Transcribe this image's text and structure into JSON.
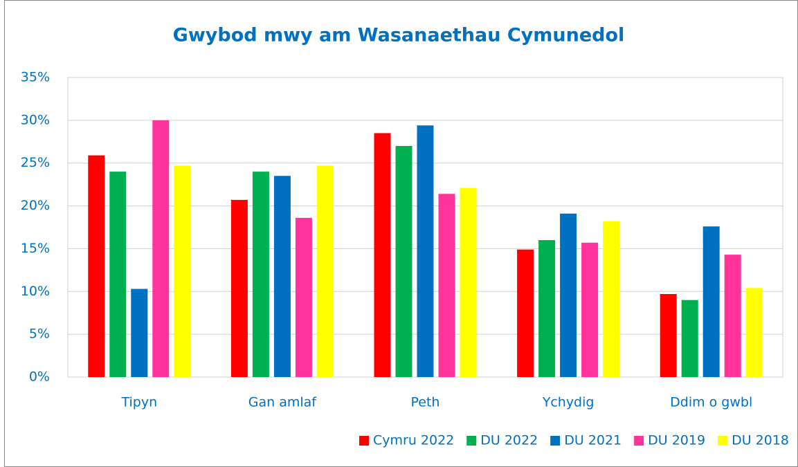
{
  "chart_data": {
    "type": "bar",
    "title": "Gwybod mwy am Wasanaethau Cymunedol",
    "categories": [
      "Tipyn",
      "Gan amlaf",
      "Peth",
      "Ychydig",
      "Ddim o gwbl"
    ],
    "series": [
      {
        "name": "Cymru 2022",
        "color": "#ff0000",
        "values": [
          25.9,
          20.7,
          28.5,
          14.9,
          9.7
        ]
      },
      {
        "name": "DU 2022",
        "color": "#00b050",
        "values": [
          24.0,
          24.0,
          27.0,
          16.0,
          9.0
        ]
      },
      {
        "name": "DU 2021",
        "color": "#0070c0",
        "values": [
          10.3,
          23.5,
          29.4,
          19.1,
          17.6
        ]
      },
      {
        "name": "DU 2019",
        "color": "#ff3399",
        "values": [
          30.0,
          18.6,
          21.4,
          15.7,
          14.3
        ]
      },
      {
        "name": "DU 2018",
        "color": "#ffff00",
        "values": [
          24.7,
          24.7,
          22.1,
          18.2,
          10.4
        ]
      }
    ],
    "ylim": [
      0,
      35
    ],
    "yticks": [
      {
        "value": 0,
        "label": "0%"
      },
      {
        "value": 5,
        "label": "5%"
      },
      {
        "value": 10,
        "label": "10%"
      },
      {
        "value": 15,
        "label": "15%"
      },
      {
        "value": 20,
        "label": "20%"
      },
      {
        "value": 25,
        "label": "25%"
      },
      {
        "value": 30,
        "label": "30%"
      },
      {
        "value": 35,
        "label": "35%"
      }
    ],
    "grid": true,
    "legend": "bottom"
  }
}
